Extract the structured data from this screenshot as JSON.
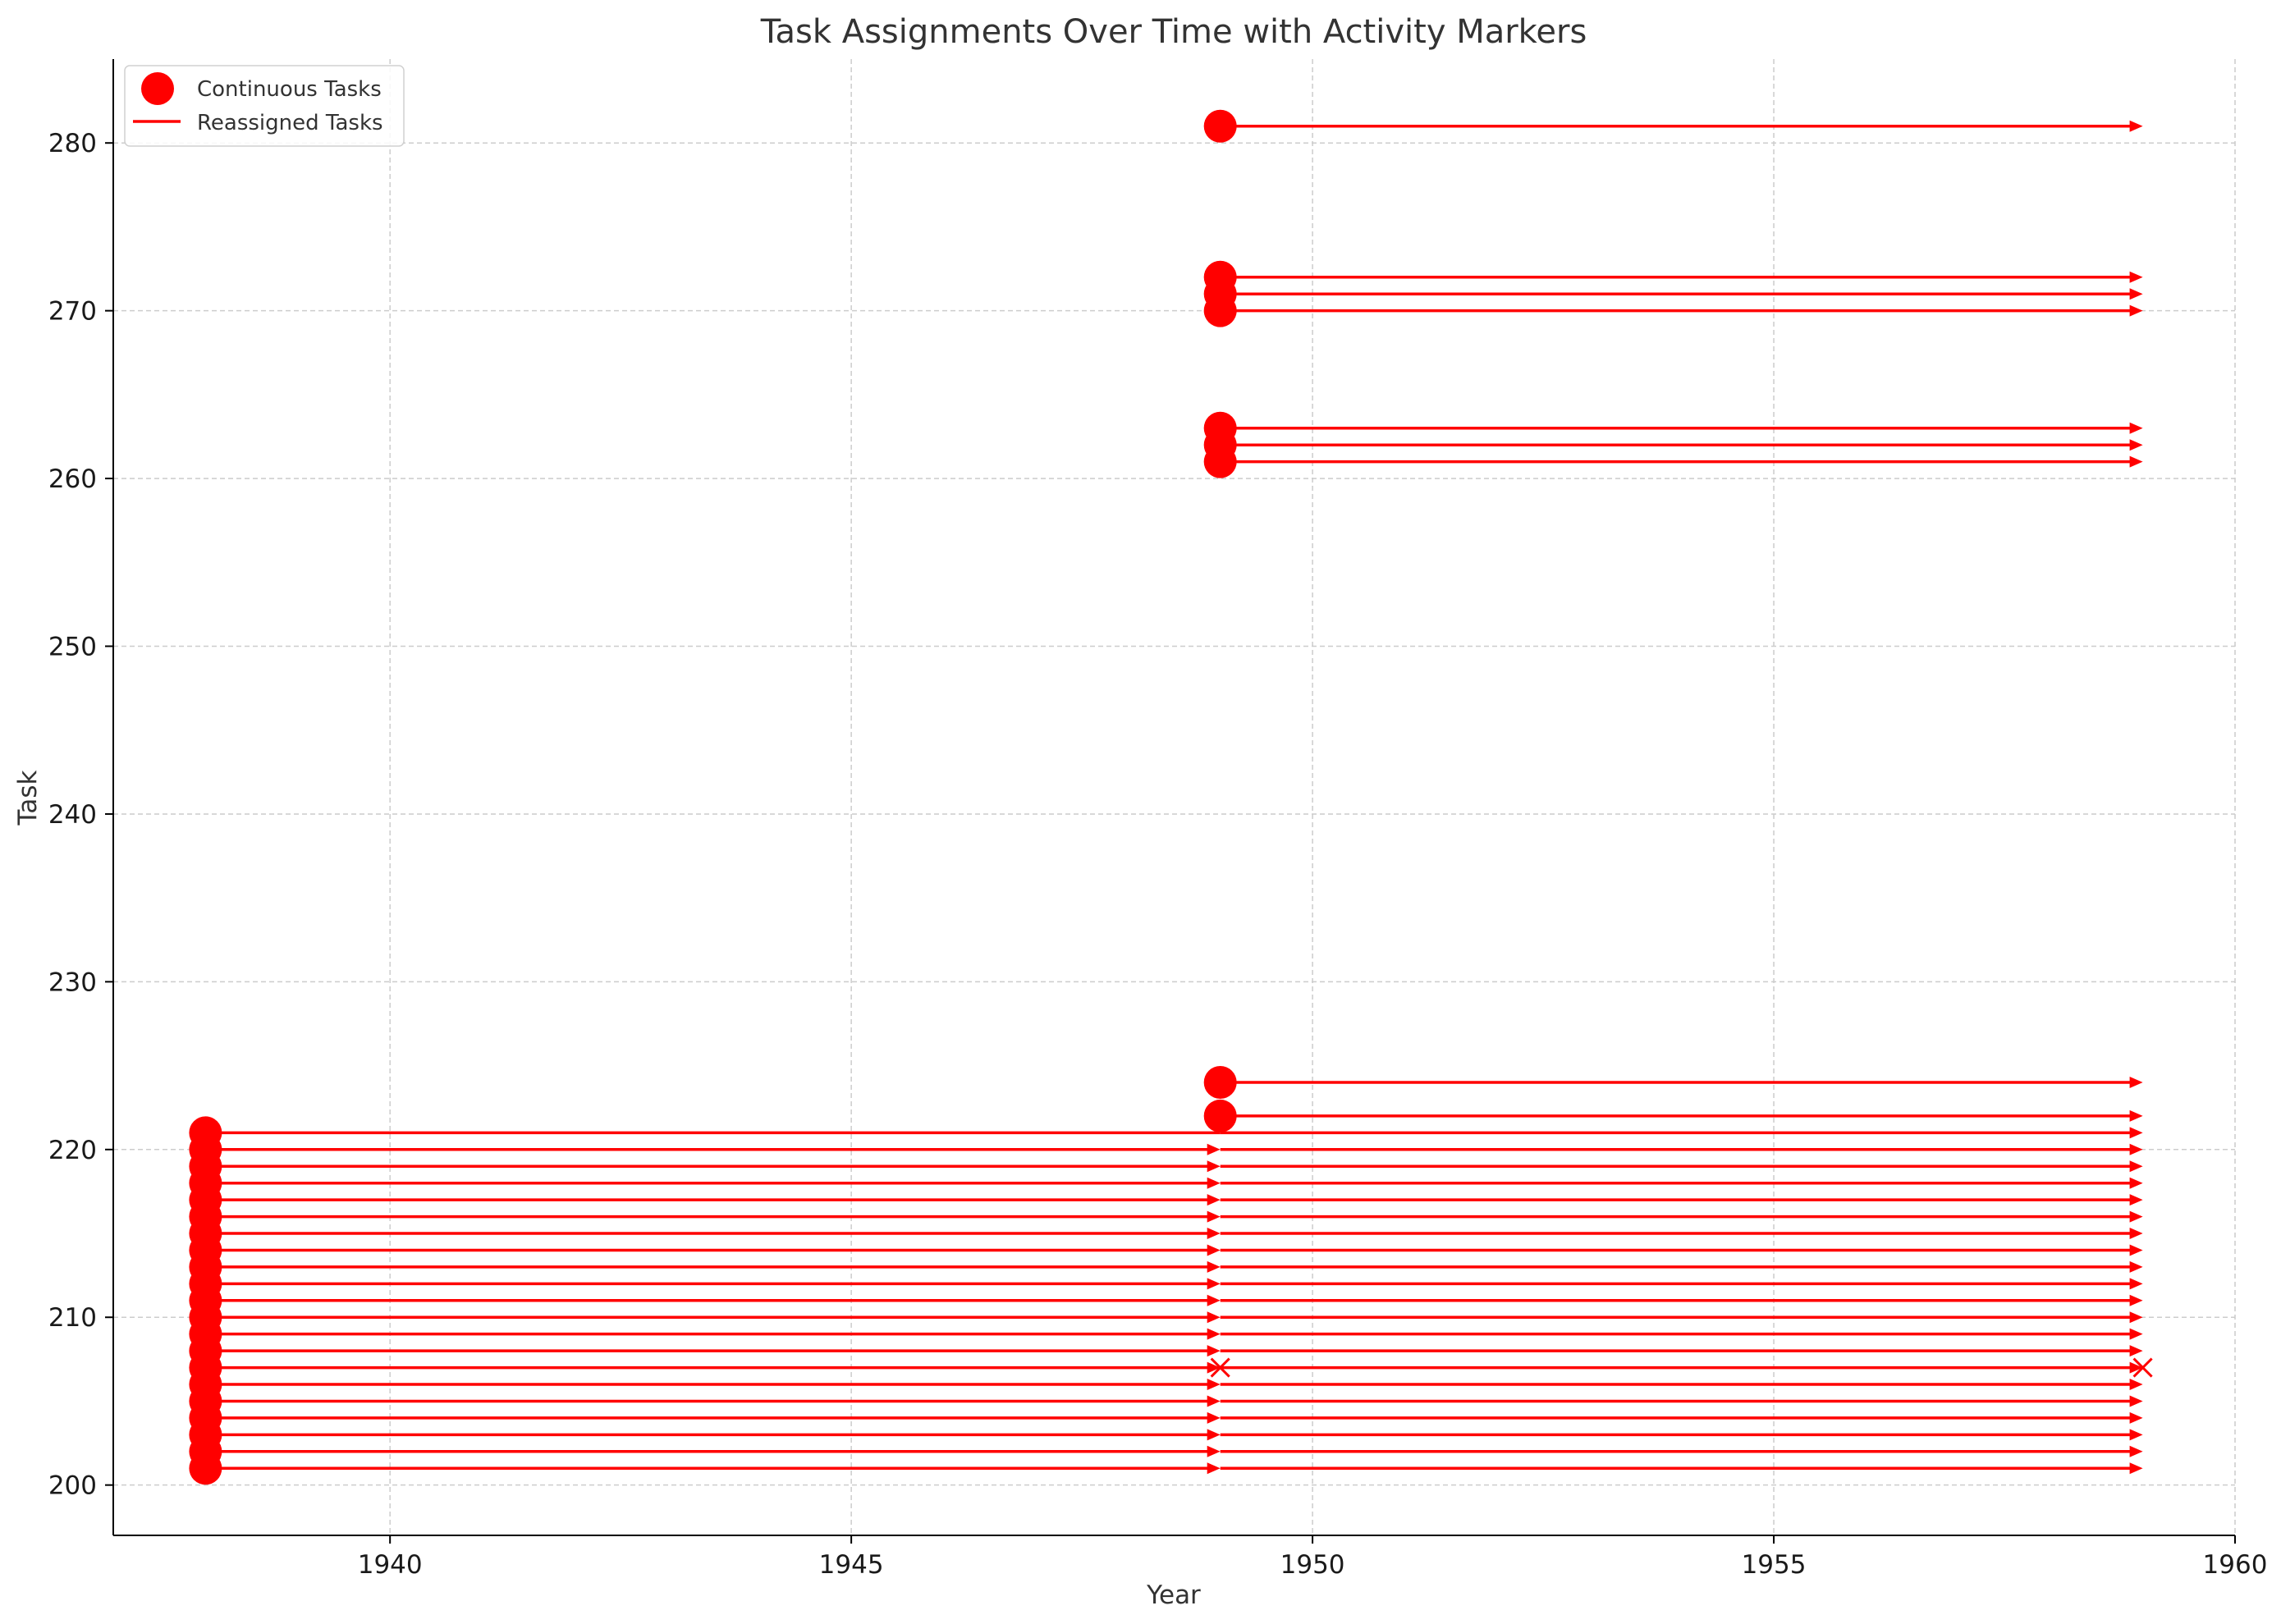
{
  "chart_data": {
    "type": "line",
    "title": "Task Assignments Over Time with Activity Markers",
    "xlabel": "Year",
    "ylabel": "Task",
    "xlim": [
      1937,
      1960
    ],
    "ylim": [
      197,
      285
    ],
    "x_ticks": [
      1940,
      1945,
      1950,
      1955,
      1960
    ],
    "y_ticks": [
      200,
      210,
      220,
      230,
      240,
      250,
      260,
      270,
      280
    ],
    "grid": true,
    "legend_position": "top-left",
    "colors": {
      "series": "#ff0000",
      "grid": "#cccccc",
      "axis": "#000000"
    },
    "legend": [
      {
        "label": "Continuous Tasks",
        "marker": "circle"
      },
      {
        "label": "Reassigned Tasks",
        "marker": "line"
      }
    ],
    "continuous_tasks": [
      {
        "year": 1938,
        "tasks": [
          201,
          202,
          203,
          204,
          205,
          206,
          207,
          208,
          209,
          210,
          211,
          212,
          213,
          214,
          215,
          216,
          217,
          218,
          219,
          220,
          221
        ]
      },
      {
        "year": 1949,
        "tasks": [
          222,
          224,
          261,
          262,
          263,
          270,
          271,
          272,
          281
        ]
      }
    ],
    "reassigned_tasks": {
      "segments_1938_1949": [
        201,
        202,
        203,
        204,
        205,
        206,
        207,
        208,
        209,
        210,
        211,
        212,
        213,
        214,
        215,
        216,
        217,
        218,
        219,
        220
      ],
      "segments_1949_1959": [
        201,
        202,
        203,
        204,
        205,
        206,
        207,
        208,
        209,
        210,
        211,
        212,
        213,
        214,
        215,
        216,
        217,
        218,
        219,
        220,
        222,
        224,
        261,
        262,
        263,
        270,
        271,
        272,
        281
      ],
      "continuous_line_1938_1959": [
        221
      ],
      "x_markers": [
        {
          "year": 1949,
          "task": 207
        },
        {
          "year": 1959,
          "task": 207
        }
      ]
    }
  }
}
